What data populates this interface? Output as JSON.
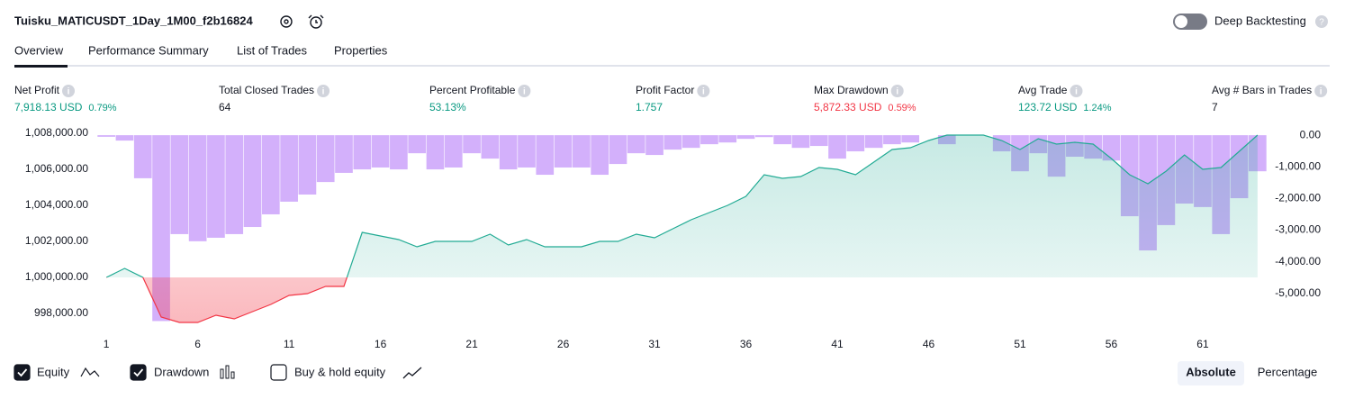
{
  "header": {
    "title": "Tuisku_MATICUSDT_1Day_1M00_f2b16824",
    "deep_backtesting": "Deep Backtesting"
  },
  "tabs": [
    "Overview",
    "Performance Summary",
    "List of Trades",
    "Properties"
  ],
  "metrics": [
    {
      "label": "Net Profit",
      "value": "7,918.13 USD",
      "percent": "0.79%",
      "color": "#089981"
    },
    {
      "label": "Total Closed Trades",
      "value": "64",
      "color": "#131722"
    },
    {
      "label": "Percent Profitable",
      "value": "53.13%",
      "color": "#089981"
    },
    {
      "label": "Profit Factor",
      "value": "1.757",
      "color": "#089981"
    },
    {
      "label": "Max Drawdown",
      "value": "5,872.33 USD",
      "percent": "0.59%",
      "color": "#f23645"
    },
    {
      "label": "Avg Trade",
      "value": "123.72 USD",
      "percent": "1.24%",
      "color": "#089981"
    },
    {
      "label": "Avg # Bars in Trades",
      "value": "7",
      "color": "#131722"
    }
  ],
  "chart_data": {
    "type": "equity",
    "x": [
      1,
      2,
      3,
      4,
      5,
      6,
      7,
      8,
      9,
      10,
      11,
      12,
      13,
      14,
      15,
      16,
      17,
      18,
      19,
      20,
      21,
      22,
      23,
      24,
      25,
      26,
      27,
      28,
      29,
      30,
      31,
      32,
      33,
      34,
      35,
      36,
      37,
      38,
      39,
      40,
      41,
      42,
      43,
      44,
      45,
      46,
      47,
      48,
      49,
      50,
      51,
      52,
      53,
      54,
      55,
      56,
      57,
      58,
      59,
      60,
      61,
      62,
      63,
      64
    ],
    "xlim": [
      0.5,
      64.5
    ],
    "xticks": [
      1,
      6,
      11,
      16,
      21,
      26,
      31,
      36,
      41,
      46,
      51,
      56,
      61
    ],
    "ylim": [
      997000,
      1008000
    ],
    "yticks": [
      {
        "value": 998000,
        "label": "998,000.00"
      },
      {
        "value": 1000000,
        "label": "1,000,000.00"
      },
      {
        "value": 1002000,
        "label": "1,002,000.00"
      },
      {
        "value": 1004000,
        "label": "1,004,000.00"
      },
      {
        "value": 1006000,
        "label": "1,006,000.00"
      },
      {
        "value": 1008000,
        "label": "1,008,000.00"
      }
    ],
    "y2lim": [
      -6200,
      60
    ],
    "y2ticks": [
      {
        "value": 0,
        "label": "0.00"
      },
      {
        "value": -1000,
        "label": "-1,000.00"
      },
      {
        "value": -2000,
        "label": "-2,000.00"
      },
      {
        "value": -3000,
        "label": "-3,000.00"
      },
      {
        "value": -4000,
        "label": "-4,000.00"
      },
      {
        "value": -5000,
        "label": "-5,000.00"
      }
    ],
    "series": [
      {
        "name": "Equity",
        "color": "#22ab94",
        "negative_color": "#f23645",
        "values": [
          1000000,
          1000500,
          1000000,
          997800,
          997500,
          997500,
          997900,
          997700,
          998100,
          998500,
          999000,
          999100,
          999500,
          999500,
          1002500,
          1002300,
          1002100,
          1001700,
          1002000,
          1002000,
          1002000,
          1002400,
          1001800,
          1002100,
          1001700,
          1001700,
          1001700,
          1002000,
          1002000,
          1002400,
          1002200,
          1002700,
          1003200,
          1003600,
          1004000,
          1004500,
          1005700,
          1005500,
          1005600,
          1006100,
          1006000,
          1005700,
          1006400,
          1007100,
          1007200,
          1007600,
          1007900,
          1007900,
          1007900,
          1007600,
          1007100,
          1007700,
          1007400,
          1007500,
          1007400,
          1006600,
          1005700,
          1005200,
          1005900,
          1006800,
          1006000,
          1006100,
          1007000,
          1007900
        ]
      },
      {
        "name": "Drawdown",
        "color": "#d3b0fb",
        "axis": "y2",
        "values": [
          -50,
          -170,
          -1360,
          -5872,
          -3125,
          -3350,
          -3240,
          -3125,
          -2900,
          -2500,
          -2100,
          -1875,
          -1480,
          -1190,
          -1080,
          -1020,
          -1080,
          -570,
          -1080,
          -1020,
          -570,
          -740,
          -1080,
          -1020,
          -1250,
          -1020,
          -1020,
          -1250,
          -910,
          -570,
          -625,
          -455,
          -400,
          -285,
          -230,
          -115,
          -60,
          -285,
          -400,
          -340,
          -740,
          -510,
          -400,
          -285,
          -230,
          0,
          -285,
          0,
          0,
          -510,
          -1140,
          -570,
          -1310,
          -680,
          -740,
          -800,
          -2560,
          -3640,
          -2840,
          -2160,
          -2270,
          -3125,
          -1990,
          -1140
        ]
      }
    ]
  },
  "extra_toggle": "Buy & hold equity",
  "modes": [
    "Absolute",
    "Percentage"
  ]
}
